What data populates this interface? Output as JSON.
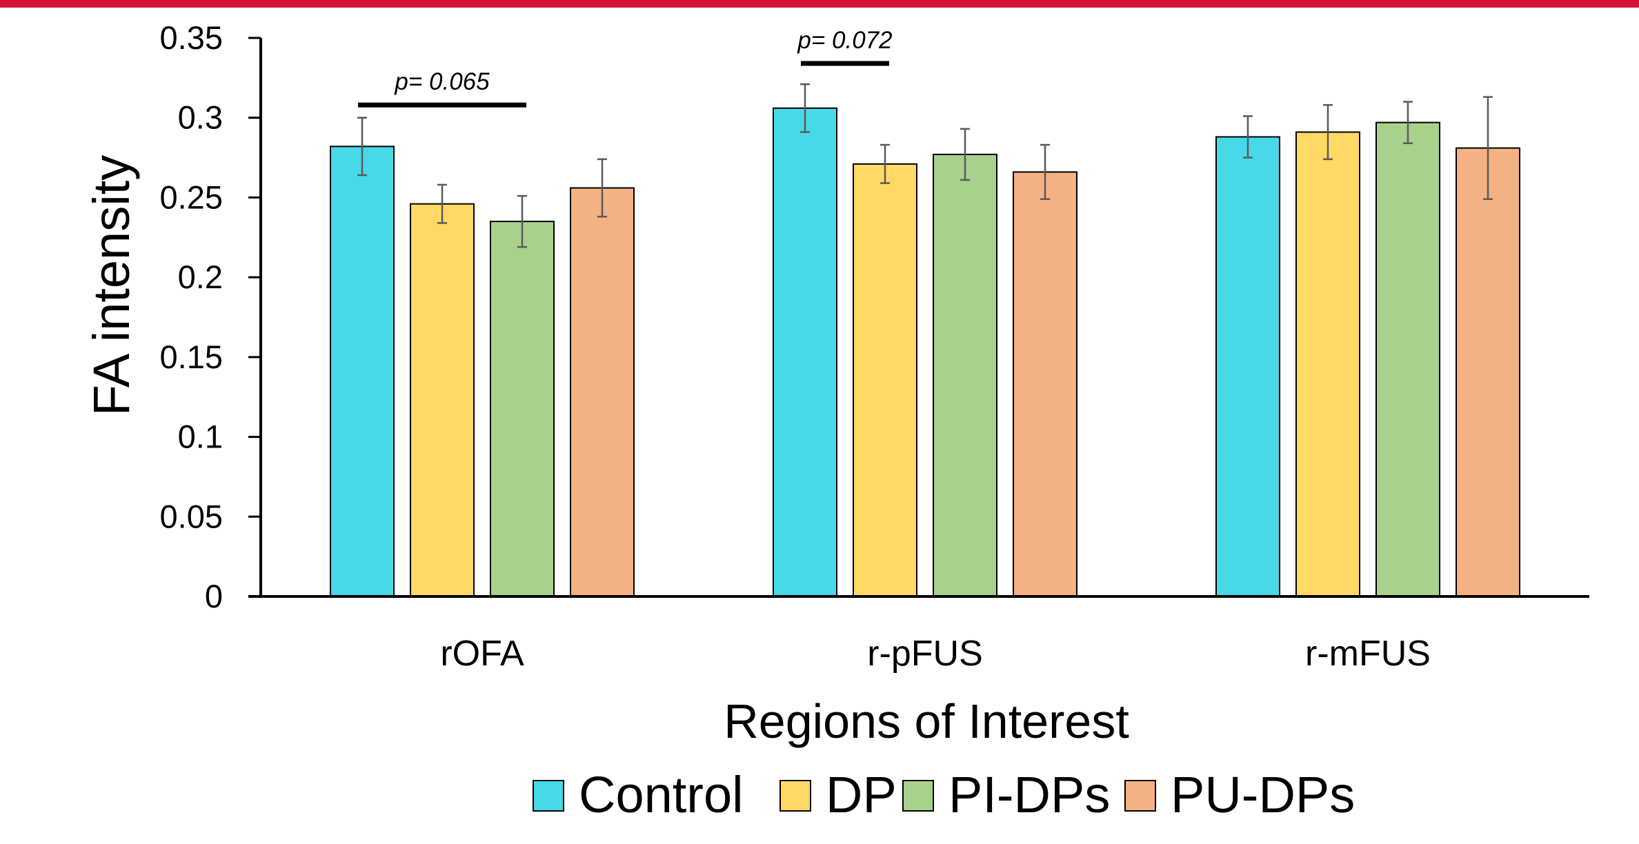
{
  "colors": {
    "top_bar": "#d5123a",
    "axis": "#000000",
    "error_bar": "#595959"
  },
  "chart_data": {
    "type": "bar",
    "title": "",
    "xlabel": "Regions of Interest",
    "ylabel": "FA intensity",
    "ylim": [
      0,
      0.35
    ],
    "yticks": [
      "0",
      "0.05",
      "0.1",
      "0.15",
      "0.2",
      "0.25",
      "0.3",
      "0.35"
    ],
    "grid": false,
    "legend_position": "bottom",
    "categories": [
      "rOFA",
      "r-pFUS",
      "r-mFUS"
    ],
    "series": [
      {
        "name": "Control",
        "color": "#48d9e8",
        "values": [
          0.282,
          0.306,
          0.288
        ],
        "errors": [
          0.018,
          0.015,
          0.013
        ]
      },
      {
        "name": "DP",
        "color": "#ffd866",
        "values": [
          0.246,
          0.271,
          0.291
        ],
        "errors": [
          0.012,
          0.012,
          0.017
        ]
      },
      {
        "name": "PI-DPs",
        "color": "#a9d18e",
        "values": [
          0.235,
          0.277,
          0.297
        ],
        "errors": [
          0.016,
          0.016,
          0.013
        ]
      },
      {
        "name": "PU-DPs",
        "color": "#f4b183",
        "values": [
          0.256,
          0.266,
          0.281
        ],
        "errors": [
          0.018,
          0.017,
          0.032
        ]
      }
    ],
    "annotations": [
      {
        "text": "p= 0.065",
        "category": "rOFA",
        "from_series": "Control",
        "to_series": "PI-DPs",
        "y": 0.308
      },
      {
        "text": "p= 0.072",
        "category": "r-pFUS",
        "from_series": "Control",
        "to_series": "DP",
        "y": 0.334
      }
    ]
  }
}
